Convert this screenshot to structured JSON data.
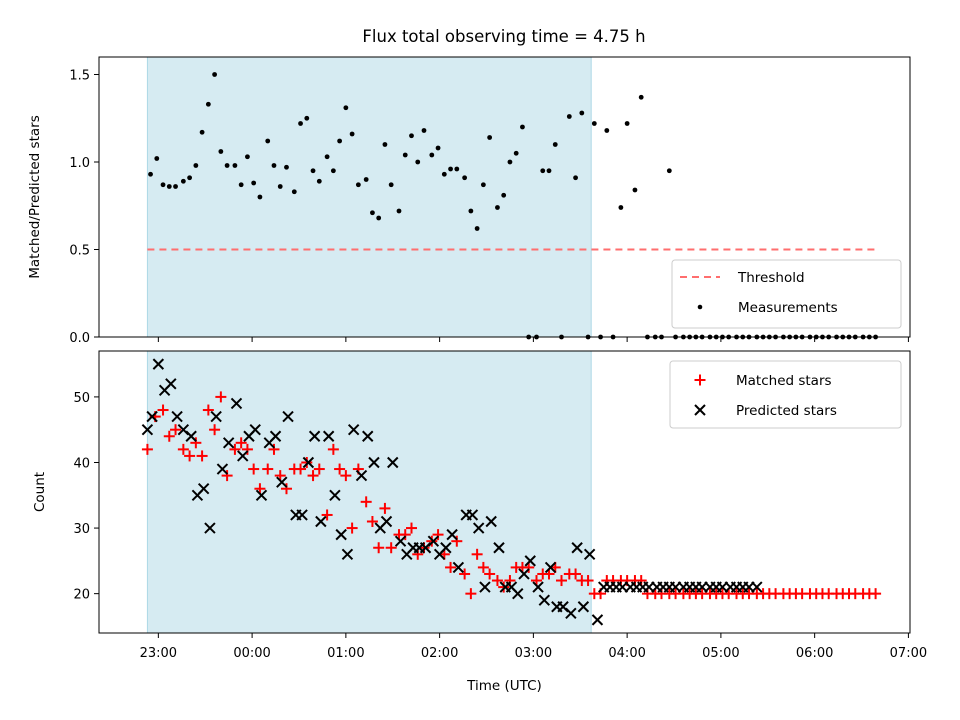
{
  "title": "Flux total observing time = 4.75 h",
  "xlabel": "Time (UTC)",
  "x_tick_labels": [
    "23:00",
    "00:00",
    "01:00",
    "02:00",
    "03:00",
    "04:00",
    "05:00",
    "06:00",
    "07:00"
  ],
  "colors": {
    "shade": "#add8e6",
    "threshold": "#ff6e6e",
    "matched": "#ff0000",
    "predicted": "#000000",
    "measurement": "#000000"
  },
  "chart_data": [
    {
      "type": "scatter",
      "ylabel": "Matched/Predicted stars",
      "ylim": [
        0,
        1.6
      ],
      "y_tick_labels": [
        "0.0",
        "0.5",
        "1.0",
        "1.5"
      ],
      "y_ticks": [
        0,
        0.5,
        1.0,
        1.5
      ],
      "shaded_interval": [
        "22:53",
        "03:37"
      ],
      "legend": {
        "position": "lower-right",
        "entries": [
          "Threshold",
          "Measurements"
        ]
      },
      "series": [
        {
          "name": "Threshold",
          "style": "dashed-line",
          "x": [
            "22:53",
            "06:40"
          ],
          "y": [
            0.5,
            0.5
          ]
        },
        {
          "name": "Measurements",
          "style": "dot",
          "x": [
            "22:55",
            "22:59",
            "23:03",
            "23:07",
            "23:11",
            "23:16",
            "23:20",
            "23:24",
            "23:28",
            "23:32",
            "23:36",
            "23:40",
            "23:44",
            "23:49",
            "23:53",
            "23:57",
            "00:01",
            "00:05",
            "00:10",
            "00:14",
            "00:18",
            "00:22",
            "00:27",
            "00:31",
            "00:35",
            "00:39",
            "00:43",
            "00:48",
            "00:52",
            "00:56",
            "01:00",
            "01:04",
            "01:08",
            "01:13",
            "01:17",
            "01:21",
            "01:25",
            "01:29",
            "01:34",
            "01:38",
            "01:42",
            "01:46",
            "01:50",
            "01:55",
            "01:59",
            "02:03",
            "02:07",
            "02:11",
            "02:16",
            "02:20",
            "02:24",
            "02:28",
            "02:32",
            "02:37",
            "02:41",
            "02:45",
            "02:49",
            "02:53",
            "02:57",
            "03:02",
            "03:06",
            "03:10",
            "03:14",
            "03:18",
            "03:23",
            "03:27",
            "03:31",
            "03:35",
            "03:39",
            "03:43",
            "03:47",
            "03:51",
            "03:56",
            "04:00",
            "04:05",
            "04:09",
            "04:13",
            "04:18",
            "04:22",
            "04:27",
            "04:31",
            "04:36",
            "04:40",
            "04:44",
            "04:48",
            "04:53",
            "04:57",
            "05:01",
            "05:05",
            "05:10",
            "05:14",
            "05:18",
            "05:23",
            "05:27",
            "05:31",
            "05:35",
            "05:40",
            "05:44",
            "05:48",
            "05:52",
            "05:57",
            "06:01",
            "06:05",
            "06:09",
            "06:14",
            "06:18",
            "06:22",
            "06:26",
            "06:31",
            "06:35",
            "06:39"
          ],
          "y": [
            0.93,
            1.02,
            0.87,
            0.86,
            0.86,
            0.89,
            0.91,
            0.98,
            1.17,
            1.33,
            1.5,
            1.06,
            0.98,
            0.98,
            0.87,
            1.03,
            0.88,
            0.8,
            1.12,
            0.98,
            0.86,
            0.97,
            0.83,
            1.22,
            1.25,
            0.95,
            0.89,
            1.03,
            0.95,
            1.12,
            1.31,
            1.16,
            0.87,
            0.9,
            0.71,
            0.68,
            1.1,
            0.87,
            0.72,
            1.04,
            1.15,
            1.0,
            1.18,
            1.04,
            1.08,
            0.93,
            0.96,
            0.96,
            0.91,
            0.72,
            0.62,
            0.87,
            1.14,
            0.74,
            0.81,
            1.0,
            1.05,
            1.2,
            0.0,
            0.0,
            0.95,
            0.95,
            1.1,
            0.0,
            1.26,
            0.91,
            1.28,
            0.0,
            1.22,
            0.0,
            1.18,
            0.0,
            0.74,
            1.22,
            0.84,
            1.37,
            0.0,
            0.0,
            0.0,
            0.95,
            0.0,
            0.0,
            0.0,
            0.0,
            0.0,
            0.0,
            0.0,
            0.0,
            0.0,
            0.0,
            0.0,
            0.0,
            0.0,
            0.0,
            0.0,
            0.0,
            0.0,
            0.0,
            0.0,
            0.0,
            0.0,
            0.0,
            0.0,
            0.0,
            0.0,
            0.0,
            0.0,
            0.0,
            0.0,
            0.0,
            0.0
          ]
        }
      ]
    },
    {
      "type": "scatter",
      "ylabel": "Count",
      "ylim": [
        14,
        57
      ],
      "y_tick_labels": [
        "20",
        "30",
        "40",
        "50"
      ],
      "y_ticks": [
        20,
        30,
        40,
        50
      ],
      "shaded_interval": [
        "22:53",
        "03:37"
      ],
      "legend": {
        "position": "upper-right",
        "entries": [
          "Matched stars",
          "Predicted stars"
        ]
      },
      "series": [
        {
          "name": "Matched stars",
          "marker": "+",
          "x": [
            "22:53",
            "22:58",
            "23:03",
            "23:07",
            "23:11",
            "23:16",
            "23:20",
            "23:24",
            "23:28",
            "23:32",
            "23:36",
            "23:40",
            "23:44",
            "23:49",
            "23:53",
            "23:57",
            "00:01",
            "00:05",
            "00:10",
            "00:14",
            "00:18",
            "00:22",
            "00:27",
            "00:31",
            "00:35",
            "00:39",
            "00:43",
            "00:48",
            "00:52",
            "00:56",
            "01:00",
            "01:04",
            "01:08",
            "01:13",
            "01:17",
            "01:21",
            "01:25",
            "01:29",
            "01:34",
            "01:38",
            "01:42",
            "01:46",
            "01:50",
            "01:55",
            "01:59",
            "02:03",
            "02:07",
            "02:11",
            "02:16",
            "02:20",
            "02:24",
            "02:28",
            "02:32",
            "02:37",
            "02:41",
            "02:45",
            "02:49",
            "02:53",
            "02:57",
            "03:02",
            "03:06",
            "03:10",
            "03:14",
            "03:18",
            "03:23",
            "03:27",
            "03:31",
            "03:35",
            "03:39",
            "03:43",
            "03:47",
            "03:51",
            "03:56",
            "04:00",
            "04:05",
            "04:09",
            "04:13",
            "04:18",
            "04:22",
            "04:27",
            "04:31",
            "04:36",
            "04:40",
            "04:44",
            "04:48",
            "04:53",
            "04:57",
            "05:01",
            "05:05",
            "05:10",
            "05:14",
            "05:18",
            "05:23",
            "05:27",
            "05:31",
            "05:35",
            "05:40",
            "05:44",
            "05:48",
            "05:52",
            "05:57",
            "06:01",
            "06:05",
            "06:09",
            "06:14",
            "06:18",
            "06:22",
            "06:26",
            "06:31",
            "06:35",
            "06:39"
          ],
          "y": [
            42,
            47,
            48,
            44,
            45,
            42,
            41,
            43,
            41,
            48,
            45,
            50,
            38,
            42,
            43,
            42,
            39,
            36,
            39,
            42,
            38,
            36,
            39,
            39,
            40,
            38,
            39,
            32,
            42,
            39,
            38,
            30,
            39,
            34,
            31,
            27,
            33,
            27,
            29,
            29,
            30,
            26,
            27,
            28,
            29,
            26,
            24,
            28,
            23,
            20,
            26,
            24,
            23,
            22,
            21,
            22,
            24,
            24,
            24,
            22,
            23,
            23,
            24,
            22,
            23,
            23,
            22,
            22,
            20,
            20,
            22,
            22,
            22,
            22,
            22,
            22,
            20,
            20,
            20,
            20,
            20,
            20,
            20,
            20,
            20,
            20,
            20,
            20,
            20,
            20,
            20,
            20,
            20,
            20,
            20,
            20,
            20,
            20,
            20,
            20,
            20,
            20,
            20,
            20,
            20,
            20,
            20,
            20,
            20,
            20,
            20
          ]
        },
        {
          "name": "Predicted stars",
          "marker": "x",
          "x": [
            "22:53",
            "22:56",
            "23:00",
            "23:04",
            "23:08",
            "23:12",
            "23:16",
            "23:21",
            "23:25",
            "23:29",
            "23:33",
            "23:37",
            "23:41",
            "23:45",
            "23:50",
            "23:54",
            "23:58",
            "00:02",
            "00:06",
            "00:11",
            "00:15",
            "00:19",
            "00:23",
            "00:28",
            "00:32",
            "00:36",
            "00:40",
            "00:44",
            "00:49",
            "00:53",
            "00:57",
            "01:01",
            "01:05",
            "01:10",
            "01:14",
            "01:18",
            "01:22",
            "01:26",
            "01:30",
            "01:35",
            "01:39",
            "01:43",
            "01:47",
            "01:51",
            "01:56",
            "02:00",
            "02:04",
            "02:08",
            "02:12",
            "02:17",
            "02:21",
            "02:25",
            "02:29",
            "02:33",
            "02:38",
            "02:42",
            "02:46",
            "02:50",
            "02:54",
            "02:58",
            "03:03",
            "03:07",
            "03:11",
            "03:15",
            "03:19",
            "03:24",
            "03:28",
            "03:32",
            "03:36",
            "03:41",
            "03:45",
            "03:49",
            "03:53",
            "03:57",
            "04:02",
            "04:06",
            "04:10",
            "04:14",
            "04:19",
            "04:23",
            "04:27",
            "04:31",
            "04:36",
            "04:40",
            "04:44",
            "04:48",
            "04:53",
            "04:57",
            "05:01",
            "05:06",
            "05:10",
            "05:14",
            "05:18",
            "05:23"
          ],
          "y": [
            45,
            47,
            55,
            51,
            52,
            47,
            45,
            44,
            35,
            36,
            30,
            47,
            39,
            43,
            49,
            41,
            44,
            45,
            35,
            43,
            44,
            37,
            47,
            32,
            32,
            40,
            44,
            31,
            44,
            35,
            29,
            26,
            45,
            38,
            44,
            40,
            30,
            31,
            40,
            28,
            26,
            27,
            27,
            27,
            28,
            26,
            27,
            29,
            24,
            32,
            32,
            30,
            21,
            31,
            27,
            21,
            21,
            20,
            23,
            25,
            21,
            19,
            24,
            18,
            18,
            17,
            27,
            18,
            26,
            16,
            21,
            21,
            21,
            21,
            21,
            21,
            21,
            21,
            21,
            21,
            21,
            21,
            21,
            21,
            21,
            21,
            21,
            21,
            21,
            21,
            21,
            21,
            21,
            21
          ]
        }
      ]
    }
  ]
}
